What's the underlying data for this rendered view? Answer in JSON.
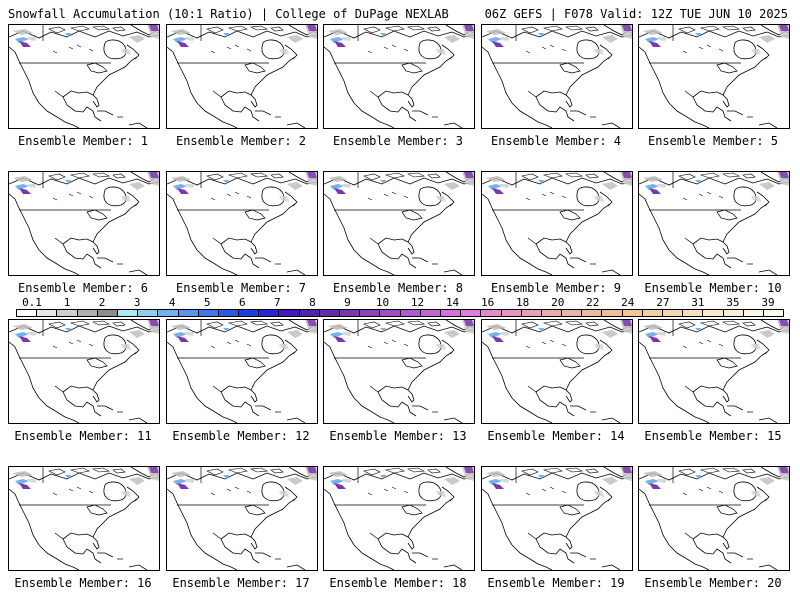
{
  "header": {
    "left": "Snowfall Accumulation (10:1 Ratio) | College of DuPage NEXLAB",
    "right": "06Z GEFS | F078 Valid: 12Z TUE JUN 10 2025"
  },
  "caption_prefix": "Ensemble Member: ",
  "members": [
    "1",
    "2",
    "3",
    "4",
    "5",
    "6",
    "7",
    "8",
    "9",
    "10",
    "11",
    "12",
    "13",
    "14",
    "15",
    "16",
    "17",
    "18",
    "19",
    "20"
  ],
  "scale": {
    "labels": [
      "0.1",
      "1",
      "2",
      "3",
      "4",
      "5",
      "6",
      "7",
      "8",
      "9",
      "10",
      "12",
      "14",
      "16",
      "18",
      "20",
      "22",
      "24",
      "27",
      "31",
      "35",
      "39"
    ],
    "colors": [
      "#ffffff",
      "#e8e8e8",
      "#cfcfcf",
      "#b0b0b0",
      "#8c8c8c",
      "#a8eaf2",
      "#8ecff0",
      "#74b2ee",
      "#5a95ea",
      "#3f78e6",
      "#2a5be2",
      "#1a3ee0",
      "#2623d8",
      "#3c1bb8",
      "#5222a8",
      "#662ba8",
      "#7a36b0",
      "#8c42b8",
      "#9e4ec2",
      "#b05acc",
      "#c266d6",
      "#d472e0",
      "#e07ed8",
      "#e28acc",
      "#e496c0",
      "#e6a2b4",
      "#e8aeaa",
      "#eab4a4",
      "#ecba9e",
      "#eec098",
      "#f0c89c",
      "#f2d0a6",
      "#f4d8b0",
      "#f6e0bc",
      "#f8e8c8",
      "#faf0d6",
      "#fcf6e4",
      "#fefaf0"
    ]
  }
}
